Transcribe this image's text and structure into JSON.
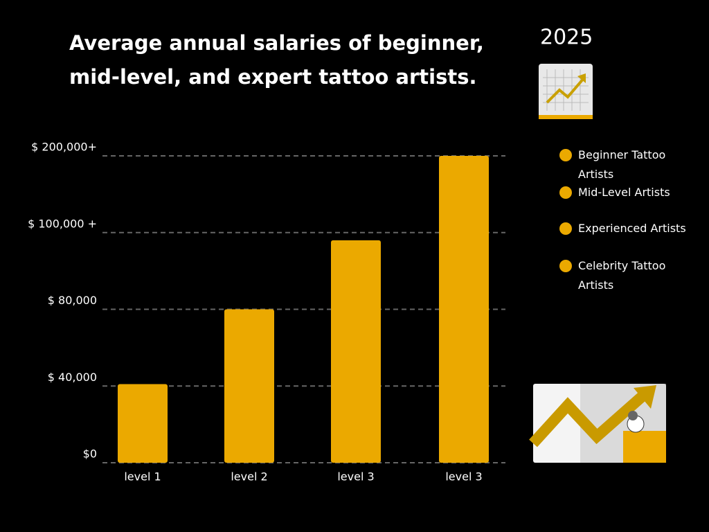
{
  "chart_data": {
    "type": "bar",
    "title": [
      "Average annual salaries of beginner,",
      "mid-level, and expert tattoo artists."
    ],
    "year": "2025",
    "categories": [
      "level 1",
      "level 2",
      "level 3",
      "level 3"
    ],
    "values": [
      41000,
      80000,
      98000,
      200000
    ],
    "color": "#eba900",
    "ylim": [
      0,
      200000
    ],
    "yticks": [
      {
        "value": 0,
        "label": "$0"
      },
      {
        "value": 40000,
        "label": "$ 40,000"
      },
      {
        "value": 80000,
        "label": "$ 80,000"
      },
      {
        "value": 100000,
        "label": "$ 100,000 +"
      },
      {
        "value": 200000,
        "label": "$ 200,000+"
      }
    ],
    "grid": true,
    "legend": [
      "Beginner Tattoo Artists",
      "Mid-Level Artists",
      "Experienced Artists",
      "Celebrity Tattoo Artists"
    ]
  }
}
